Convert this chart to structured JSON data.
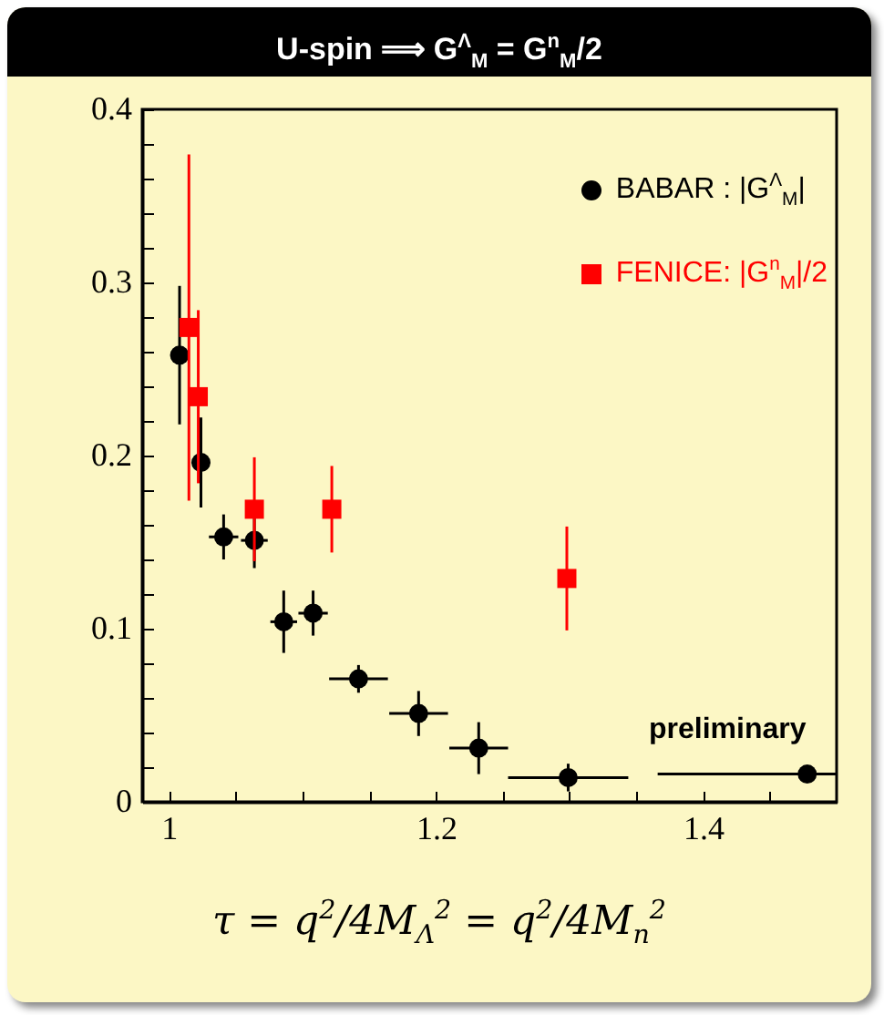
{
  "chart_data": {
    "type": "scatter",
    "title": "U-spin ⟹ G$^{Λ}$$_{M}$ = G$^{n}$$_{M}$/2",
    "xlabel": "τ = q$^{2}$/4M$_{Λ}$$^{2}$ = q$^{2}$/4M$_{n}$$^{2}$",
    "xlim": [
      0.98,
      1.5
    ],
    "ylim": [
      0,
      0.4
    ],
    "xticks": [
      1,
      {
        "value": 1.05,
        "label": null
      },
      {
        "value": 1.1,
        "label": null
      },
      {
        "value": 1.15,
        "label": null
      },
      1.2,
      {
        "value": 1.25,
        "label": null
      },
      {
        "value": 1.3,
        "label": null
      },
      {
        "value": 1.35,
        "label": null
      },
      1.4,
      {
        "value": 1.45,
        "label": null
      }
    ],
    "yticks": [
      0,
      {
        "value": 0.02,
        "label": null
      },
      {
        "value": 0.04,
        "label": null
      },
      {
        "value": 0.06,
        "label": null
      },
      {
        "value": 0.08,
        "label": null
      },
      0.1,
      {
        "value": 0.12,
        "label": null
      },
      {
        "value": 0.14,
        "label": null
      },
      {
        "value": 0.16,
        "label": null
      },
      {
        "value": 0.18,
        "label": null
      },
      0.2,
      {
        "value": 0.22,
        "label": null
      },
      {
        "value": 0.24,
        "label": null
      },
      {
        "value": 0.26,
        "label": null
      },
      {
        "value": 0.28,
        "label": null
      },
      0.3,
      {
        "value": 0.32,
        "label": null
      },
      {
        "value": 0.34,
        "label": null
      },
      {
        "value": 0.36,
        "label": null
      },
      {
        "value": 0.38,
        "label": null
      },
      0.4
    ],
    "grid": false,
    "legend": "top right",
    "annotations": [
      "preliminary"
    ],
    "series": [
      {
        "name": "BABAR : |G$^{Λ}$$_{M}$|",
        "color": "#000000",
        "marker": "circle",
        "x": [
          1.008,
          1.024,
          1.041,
          1.064,
          1.086,
          1.108,
          1.142,
          1.187,
          1.232,
          1.299,
          1.478
        ],
        "values": [
          0.258,
          0.196,
          0.153,
          0.151,
          0.104,
          0.109,
          0.071,
          0.051,
          0.031,
          0.014,
          0.016
        ],
        "errors": [
          0.04,
          0.026,
          0.013,
          0.016,
          0.018,
          0.013,
          0.008,
          0.013,
          0.015,
          0.008,
          null
        ],
        "xerrors": [
          0.005,
          null,
          0.011,
          0.01,
          0.01,
          0.011,
          0.022,
          0.022,
          0.022,
          0.045,
          [
            1.366,
            1.5
          ]
        ]
      },
      {
        "name": "FENICE: |G$^{n}$$_{M}$|/2",
        "color": "#ff0000",
        "marker": "square",
        "x": [
          1.015,
          1.022,
          1.064,
          1.122,
          1.298
        ],
        "values": [
          0.274,
          0.234,
          0.169,
          0.169,
          0.129
        ],
        "errors": [
          [
            0.174,
            0.374
          ],
          0.05,
          0.03,
          0.025,
          0.03
        ]
      }
    ]
  }
}
